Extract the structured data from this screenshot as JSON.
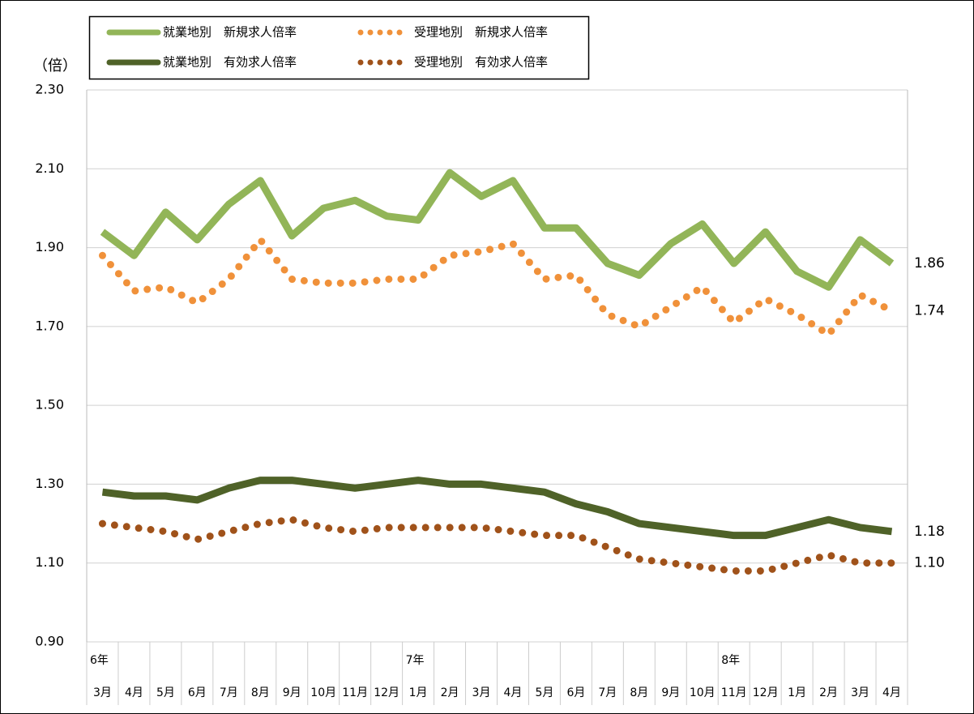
{
  "chart_data": {
    "type": "line",
    "y_label": "（倍）",
    "categories": [
      "3月",
      "4月",
      "5月",
      "6月",
      "7月",
      "8月",
      "9月",
      "10月",
      "11月",
      "12月",
      "1月",
      "2月",
      "3月",
      "4月",
      "5月",
      "6月",
      "7月",
      "8月",
      "9月",
      "10月",
      "11月",
      "12月",
      "1月",
      "2月",
      "3月",
      "4月"
    ],
    "years": [
      "6年",
      null,
      null,
      null,
      null,
      null,
      null,
      null,
      null,
      null,
      "7年",
      null,
      null,
      null,
      null,
      null,
      null,
      null,
      null,
      null,
      "8年",
      null,
      null,
      null,
      null,
      null
    ],
    "ylim": [
      0.9,
      2.3
    ],
    "yticks": [
      {
        "value": 0.9,
        "label": "0.90"
      },
      {
        "value": 1.1,
        "label": "1.10"
      },
      {
        "value": 1.3,
        "label": "1.30"
      },
      {
        "value": 1.5,
        "label": "1.50"
      },
      {
        "value": 1.7,
        "label": "1.70"
      },
      {
        "value": 1.9,
        "label": "1.90"
      },
      {
        "value": 2.1,
        "label": "2.10"
      },
      {
        "value": 2.3,
        "label": "2.30"
      }
    ],
    "grid": true,
    "series": [
      {
        "name": "就業地別　新規求人倍率",
        "color": "#92b558",
        "label_color": "#7a9a3a",
        "style": "solid",
        "values": [
          1.94,
          1.88,
          1.99,
          1.92,
          2.01,
          2.07,
          1.93,
          2.0,
          2.02,
          1.98,
          1.97,
          2.09,
          2.03,
          2.07,
          1.95,
          1.95,
          1.86,
          1.83,
          1.91,
          1.96,
          1.86,
          1.94,
          1.84,
          1.8,
          1.92,
          1.86
        ],
        "value_labels": [
          null,
          null,
          null,
          null,
          null,
          null,
          null,
          null,
          null,
          null,
          null,
          null,
          null,
          null,
          null,
          null,
          null,
          null,
          null,
          null,
          null,
          null,
          null,
          null,
          null,
          "1.86"
        ]
      },
      {
        "name": "受理地別　新規求人倍率",
        "color": "#f0913a",
        "label_color": "#e07b1a",
        "style": "dotted",
        "values": [
          1.88,
          1.79,
          1.8,
          1.76,
          1.82,
          1.92,
          1.82,
          1.81,
          1.81,
          1.82,
          1.82,
          1.88,
          1.89,
          1.91,
          1.82,
          1.83,
          1.73,
          1.7,
          1.75,
          1.8,
          1.71,
          1.77,
          1.73,
          1.68,
          1.78,
          1.74
        ],
        "value_labels": [
          null,
          null,
          null,
          null,
          null,
          null,
          null,
          null,
          null,
          null,
          null,
          null,
          null,
          null,
          null,
          null,
          null,
          null,
          null,
          null,
          null,
          null,
          null,
          null,
          null,
          "1.74"
        ]
      },
      {
        "name": "就業地別　有効求人倍率",
        "color": "#4f6228",
        "label_color": "#2e7a1e",
        "style": "solid",
        "values": [
          1.28,
          1.27,
          1.27,
          1.26,
          1.29,
          1.31,
          1.31,
          1.3,
          1.29,
          1.3,
          1.31,
          1.3,
          1.3,
          1.29,
          1.28,
          1.25,
          1.23,
          1.2,
          1.19,
          1.18,
          1.17,
          1.17,
          1.19,
          1.21,
          1.19,
          1.18
        ],
        "value_labels": [
          null,
          null,
          null,
          null,
          null,
          null,
          null,
          null,
          null,
          null,
          null,
          null,
          null,
          null,
          null,
          null,
          null,
          null,
          null,
          null,
          null,
          null,
          null,
          null,
          null,
          "1.18"
        ]
      },
      {
        "name": "受理地別　有効求人倍率",
        "color": "#a0521a",
        "label_color": "#b06010",
        "style": "dotted",
        "values": [
          1.2,
          1.19,
          1.18,
          1.16,
          1.18,
          1.2,
          1.21,
          1.19,
          1.18,
          1.19,
          1.19,
          1.19,
          1.19,
          1.18,
          1.17,
          1.17,
          1.14,
          1.11,
          1.1,
          1.09,
          1.08,
          1.08,
          1.1,
          1.12,
          1.1,
          1.1
        ],
        "value_labels": [
          null,
          null,
          null,
          null,
          null,
          null,
          null,
          null,
          null,
          null,
          null,
          null,
          null,
          null,
          null,
          null,
          null,
          null,
          null,
          null,
          null,
          null,
          null,
          null,
          null,
          "1.10"
        ]
      }
    ]
  }
}
